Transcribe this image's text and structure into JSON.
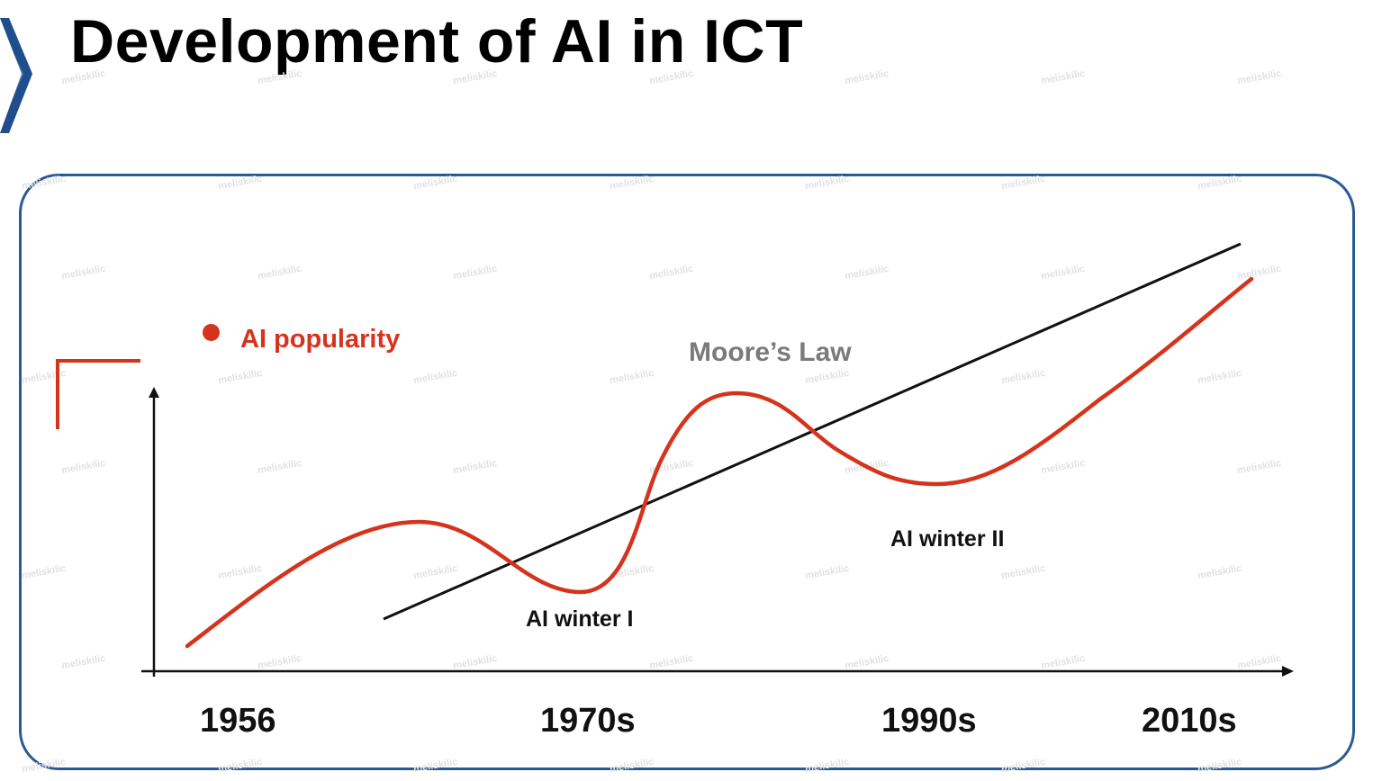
{
  "title": "Development of AI in ICT",
  "legend": {
    "label": "AI popularity",
    "color": "#d6331c"
  },
  "moores_law": {
    "label": "Moore’s Law",
    "color": "#111111"
  },
  "annotations": [
    {
      "id": "winter1",
      "text": "AI winter I"
    },
    {
      "id": "winter2",
      "text": "AI winter II"
    }
  ],
  "x_axis": {
    "ticks": [
      "1956",
      "1970s",
      "1990s",
      "2010s"
    ]
  },
  "watermark": "meliskilic",
  "colors": {
    "accent": "#d6331c",
    "frame": "#2a5a93",
    "chevron": "#1f4e8c"
  }
}
